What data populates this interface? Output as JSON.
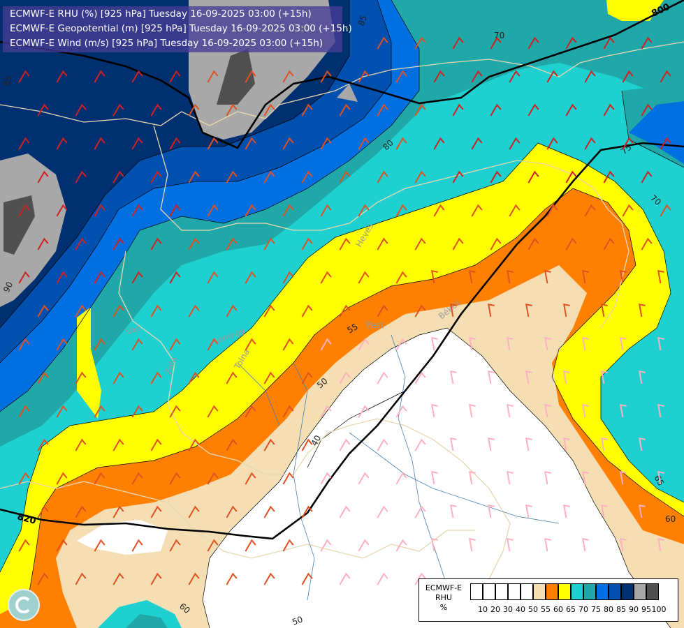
{
  "header": {
    "line1": "ECMWF-E RHU (%) [925 hPa] Tuesday 16-09-2025 03:00 (+15h)",
    "line2": "ECMWF-E Geopotential (m) [925 hPa] Tuesday 16-09-2025 03:00 (+15h)",
    "line3": "ECMWF-E Wind (m/s) [925 hPa] Tuesday 16-09-2025 03:00 (+15h)"
  },
  "legend": {
    "title1": "ECMWF-E",
    "title2": "RHU",
    "title3": "%",
    "ticks": [
      "10",
      "20",
      "30",
      "40",
      "50",
      "55",
      "60",
      "65",
      "70",
      "75",
      "80",
      "85",
      "90",
      "95",
      "100"
    ],
    "colors": [
      "#ffffff",
      "#ffffff",
      "#ffffff",
      "#ffffff",
      "#ffffff",
      "#f5deb3",
      "#ff8000",
      "#ffff00",
      "#1ed0d0",
      "#20a8a8",
      "#0070e0",
      "#0050b0",
      "#003070",
      "#a8a8a8",
      "#505050"
    ]
  },
  "contour_labels": {
    "rhu_85": "85",
    "rhu_80": "80",
    "rhu_70": "70",
    "rhu_75": "75",
    "rhu_70b": "70",
    "rhu_55": "55",
    "rhu_50": "50",
    "rhu_40": "40",
    "rhu_65": "65",
    "rhu_60": "60",
    "rhu_60b": "60",
    "rhu_50b": "50",
    "rhu_85b": "85",
    "rhu_90": "90"
  },
  "geopotential_labels": {
    "g800": "800",
    "g820": "820"
  },
  "places": {
    "pest": "Pest",
    "bekes": "Békés",
    "heves": "Heves",
    "somogy": "Somogy",
    "tolna": "Tolna",
    "vas": "Vas",
    "zala": "Zala"
  },
  "colors": {
    "rhu_100": "#505050",
    "rhu_95": "#a8a8a8",
    "rhu_90": "#003070",
    "rhu_85": "#0050b0",
    "rhu_80": "#0070e0",
    "rhu_75": "#20a8a8",
    "rhu_70": "#1ed0d0",
    "rhu_65": "#ffff00",
    "rhu_60": "#ff8000",
    "rhu_55": "#f5deb3",
    "rhu_50": "#ffffff"
  }
}
